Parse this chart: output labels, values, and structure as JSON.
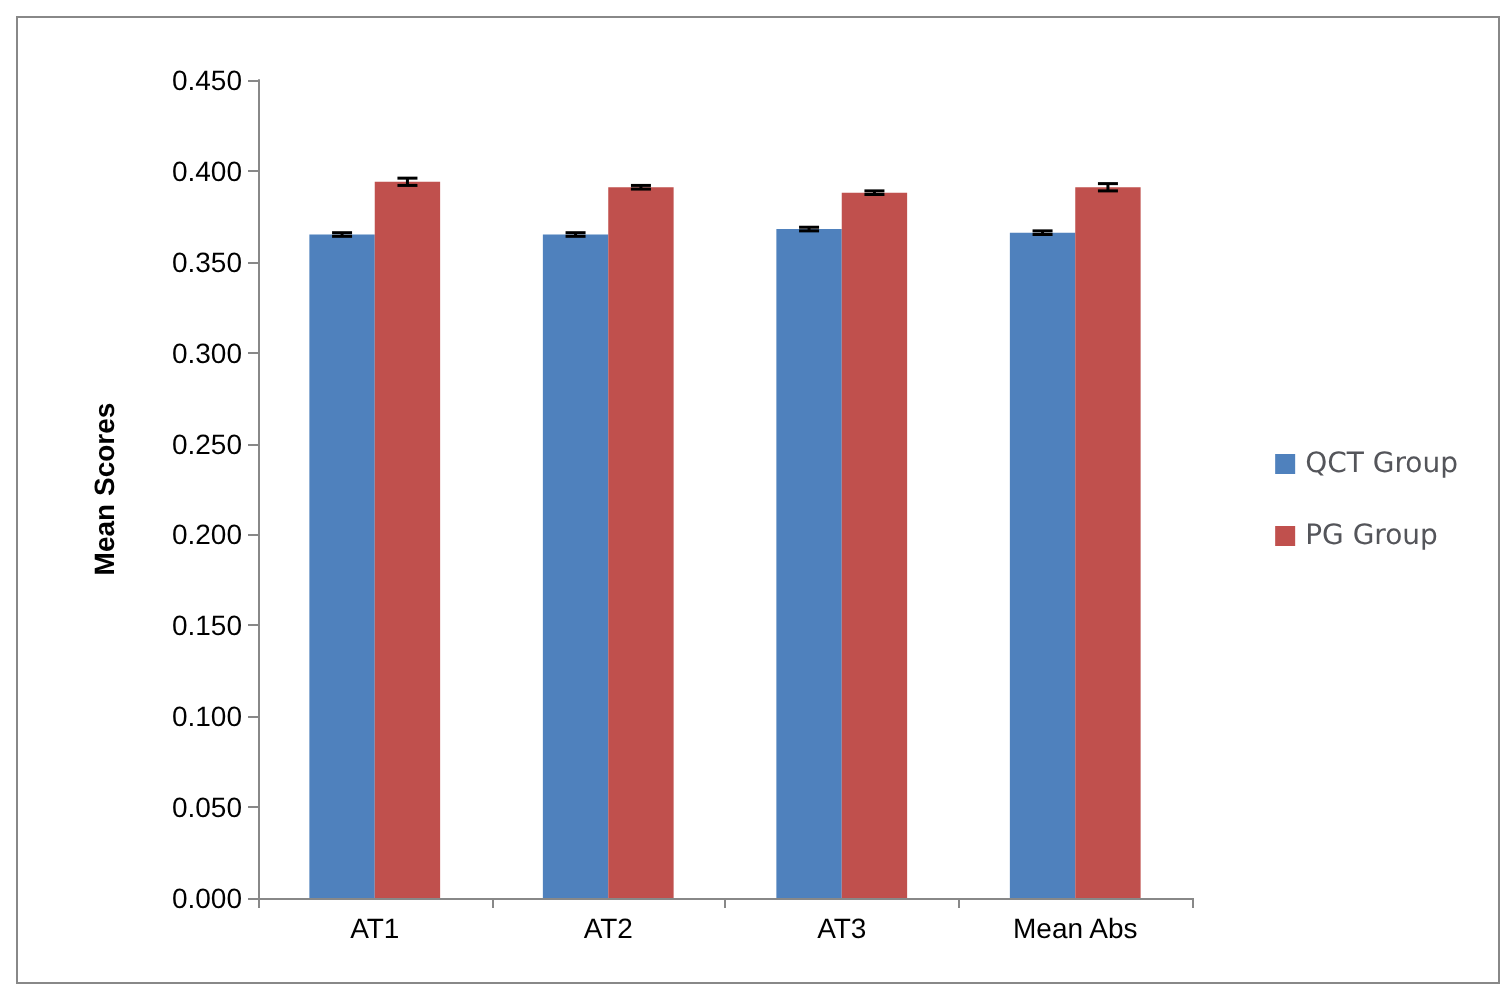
{
  "chart_data": {
    "type": "bar",
    "ylabel": "Mean Scores",
    "categories": [
      "AT1",
      "AT2",
      "AT3",
      "Mean Abs"
    ],
    "series": [
      {
        "name": "QCT Group",
        "color": "#4f81bd",
        "values": [
          0.365,
          0.365,
          0.368,
          0.366
        ],
        "errors": [
          0.001,
          0.001,
          0.001,
          0.001
        ]
      },
      {
        "name": "PG Group",
        "color": "#c0504d",
        "values": [
          0.394,
          0.391,
          0.388,
          0.391
        ],
        "errors": [
          0.002,
          0.001,
          0.001,
          0.002
        ]
      }
    ],
    "ylim": [
      0,
      0.45
    ],
    "yticks": [
      {
        "value": 0,
        "label": "0.000"
      },
      {
        "value": 0.05,
        "label": "0.050"
      },
      {
        "value": 0.1,
        "label": "0.100"
      },
      {
        "value": 0.15,
        "label": "0.150"
      },
      {
        "value": 0.2,
        "label": "0.200"
      },
      {
        "value": 0.25,
        "label": "0.250"
      },
      {
        "value": 0.3,
        "label": "0.300"
      },
      {
        "value": 0.35,
        "label": "0.350"
      },
      {
        "value": 0.4,
        "label": "0.400"
      },
      {
        "value": 0.45,
        "label": "0.450"
      }
    ],
    "grid": false,
    "legend": "right"
  }
}
